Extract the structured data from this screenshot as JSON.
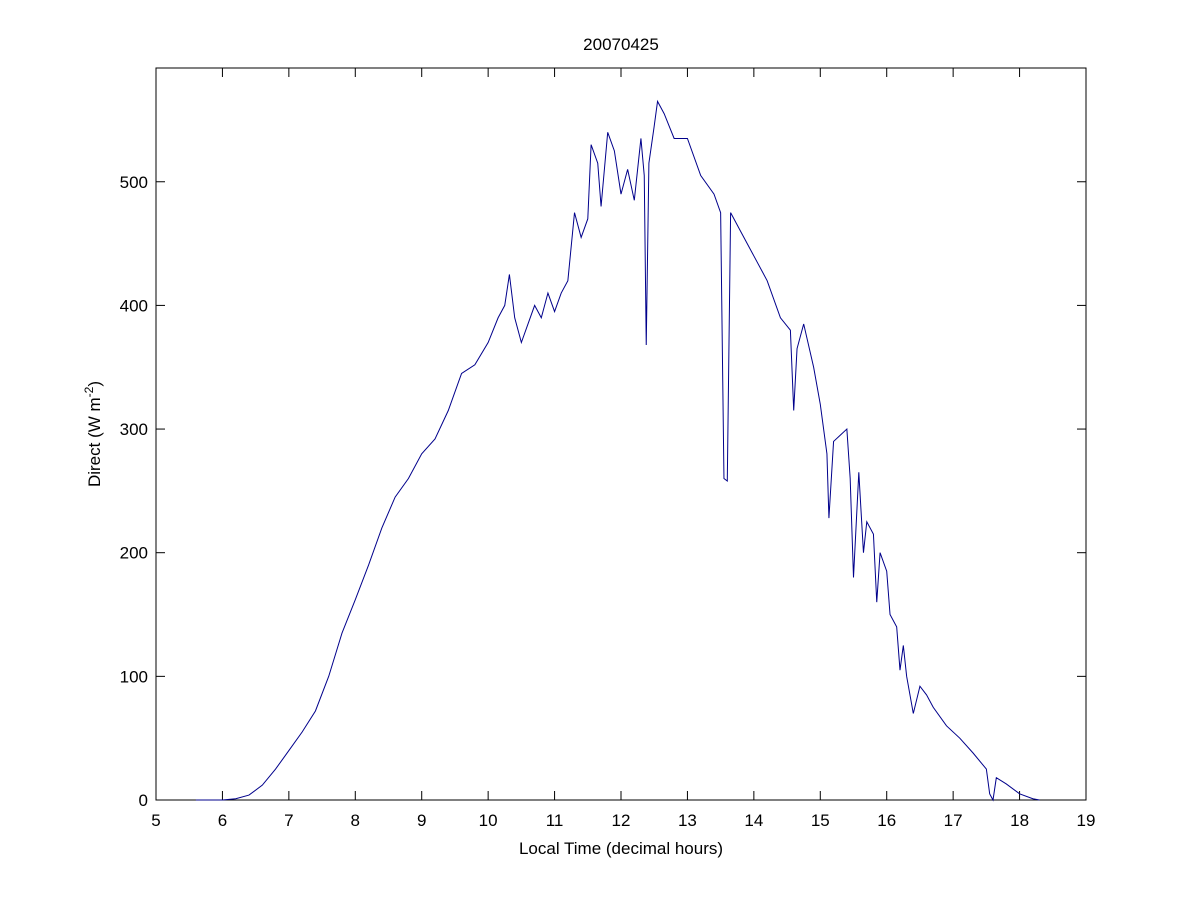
{
  "chart_data": {
    "type": "line",
    "title": "20070425",
    "xlabel": "Local Time (decimal hours)",
    "ylabel": [
      "Direct (W m",
      "-2",
      ")"
    ],
    "xlim": [
      5,
      19
    ],
    "xticks": [
      5,
      6,
      7,
      8,
      9,
      10,
      11,
      12,
      13,
      14,
      15,
      16,
      17,
      18,
      19
    ],
    "ylim": [
      0,
      592
    ],
    "yticks": [
      0,
      100,
      200,
      300,
      400,
      500
    ],
    "grid": false,
    "series": [
      {
        "color": "#00008b",
        "x": [
          5.6,
          6.0,
          6.2,
          6.4,
          6.6,
          6.8,
          7.0,
          7.2,
          7.4,
          7.6,
          7.8,
          8.0,
          8.2,
          8.4,
          8.6,
          8.8,
          9.0,
          9.2,
          9.4,
          9.6,
          9.8,
          10.0,
          10.15,
          10.25,
          10.32,
          10.4,
          10.5,
          10.6,
          10.7,
          10.8,
          10.9,
          11.0,
          11.1,
          11.2,
          11.3,
          11.4,
          11.5,
          11.55,
          11.65,
          11.7,
          11.8,
          11.9,
          12.0,
          12.1,
          12.2,
          12.3,
          12.35,
          12.38,
          12.42,
          12.5,
          12.55,
          12.65,
          12.8,
          13.0,
          13.2,
          13.4,
          13.5,
          13.55,
          13.6,
          13.65,
          13.8,
          14.0,
          14.2,
          14.4,
          14.55,
          14.6,
          14.65,
          14.75,
          14.9,
          15.0,
          15.1,
          15.13,
          15.2,
          15.3,
          15.4,
          15.45,
          15.5,
          15.58,
          15.65,
          15.7,
          15.8,
          15.85,
          15.9,
          16.0,
          16.05,
          16.15,
          16.2,
          16.25,
          16.3,
          16.4,
          16.5,
          16.6,
          16.7,
          16.9,
          17.1,
          17.3,
          17.5,
          17.55,
          17.6,
          17.65,
          17.8,
          18.0,
          18.2,
          18.3
        ],
        "values": [
          0,
          0,
          1,
          4,
          12,
          25,
          40,
          55,
          72,
          100,
          135,
          162,
          190,
          220,
          245,
          260,
          280,
          292,
          315,
          345,
          352,
          370,
          390,
          400,
          425,
          390,
          370,
          385,
          400,
          390,
          410,
          395,
          410,
          420,
          475,
          455,
          470,
          530,
          515,
          480,
          540,
          525,
          490,
          510,
          485,
          535,
          505,
          368,
          515,
          545,
          565,
          555,
          535,
          535,
          505,
          490,
          475,
          260,
          258,
          475,
          460,
          440,
          420,
          390,
          380,
          315,
          365,
          385,
          350,
          320,
          280,
          228,
          290,
          295,
          300,
          260,
          180,
          265,
          200,
          225,
          215,
          160,
          200,
          185,
          150,
          140,
          105,
          125,
          100,
          70,
          92,
          85,
          75,
          60,
          50,
          38,
          25,
          5,
          0,
          18,
          13,
          5,
          1,
          0
        ]
      }
    ]
  }
}
